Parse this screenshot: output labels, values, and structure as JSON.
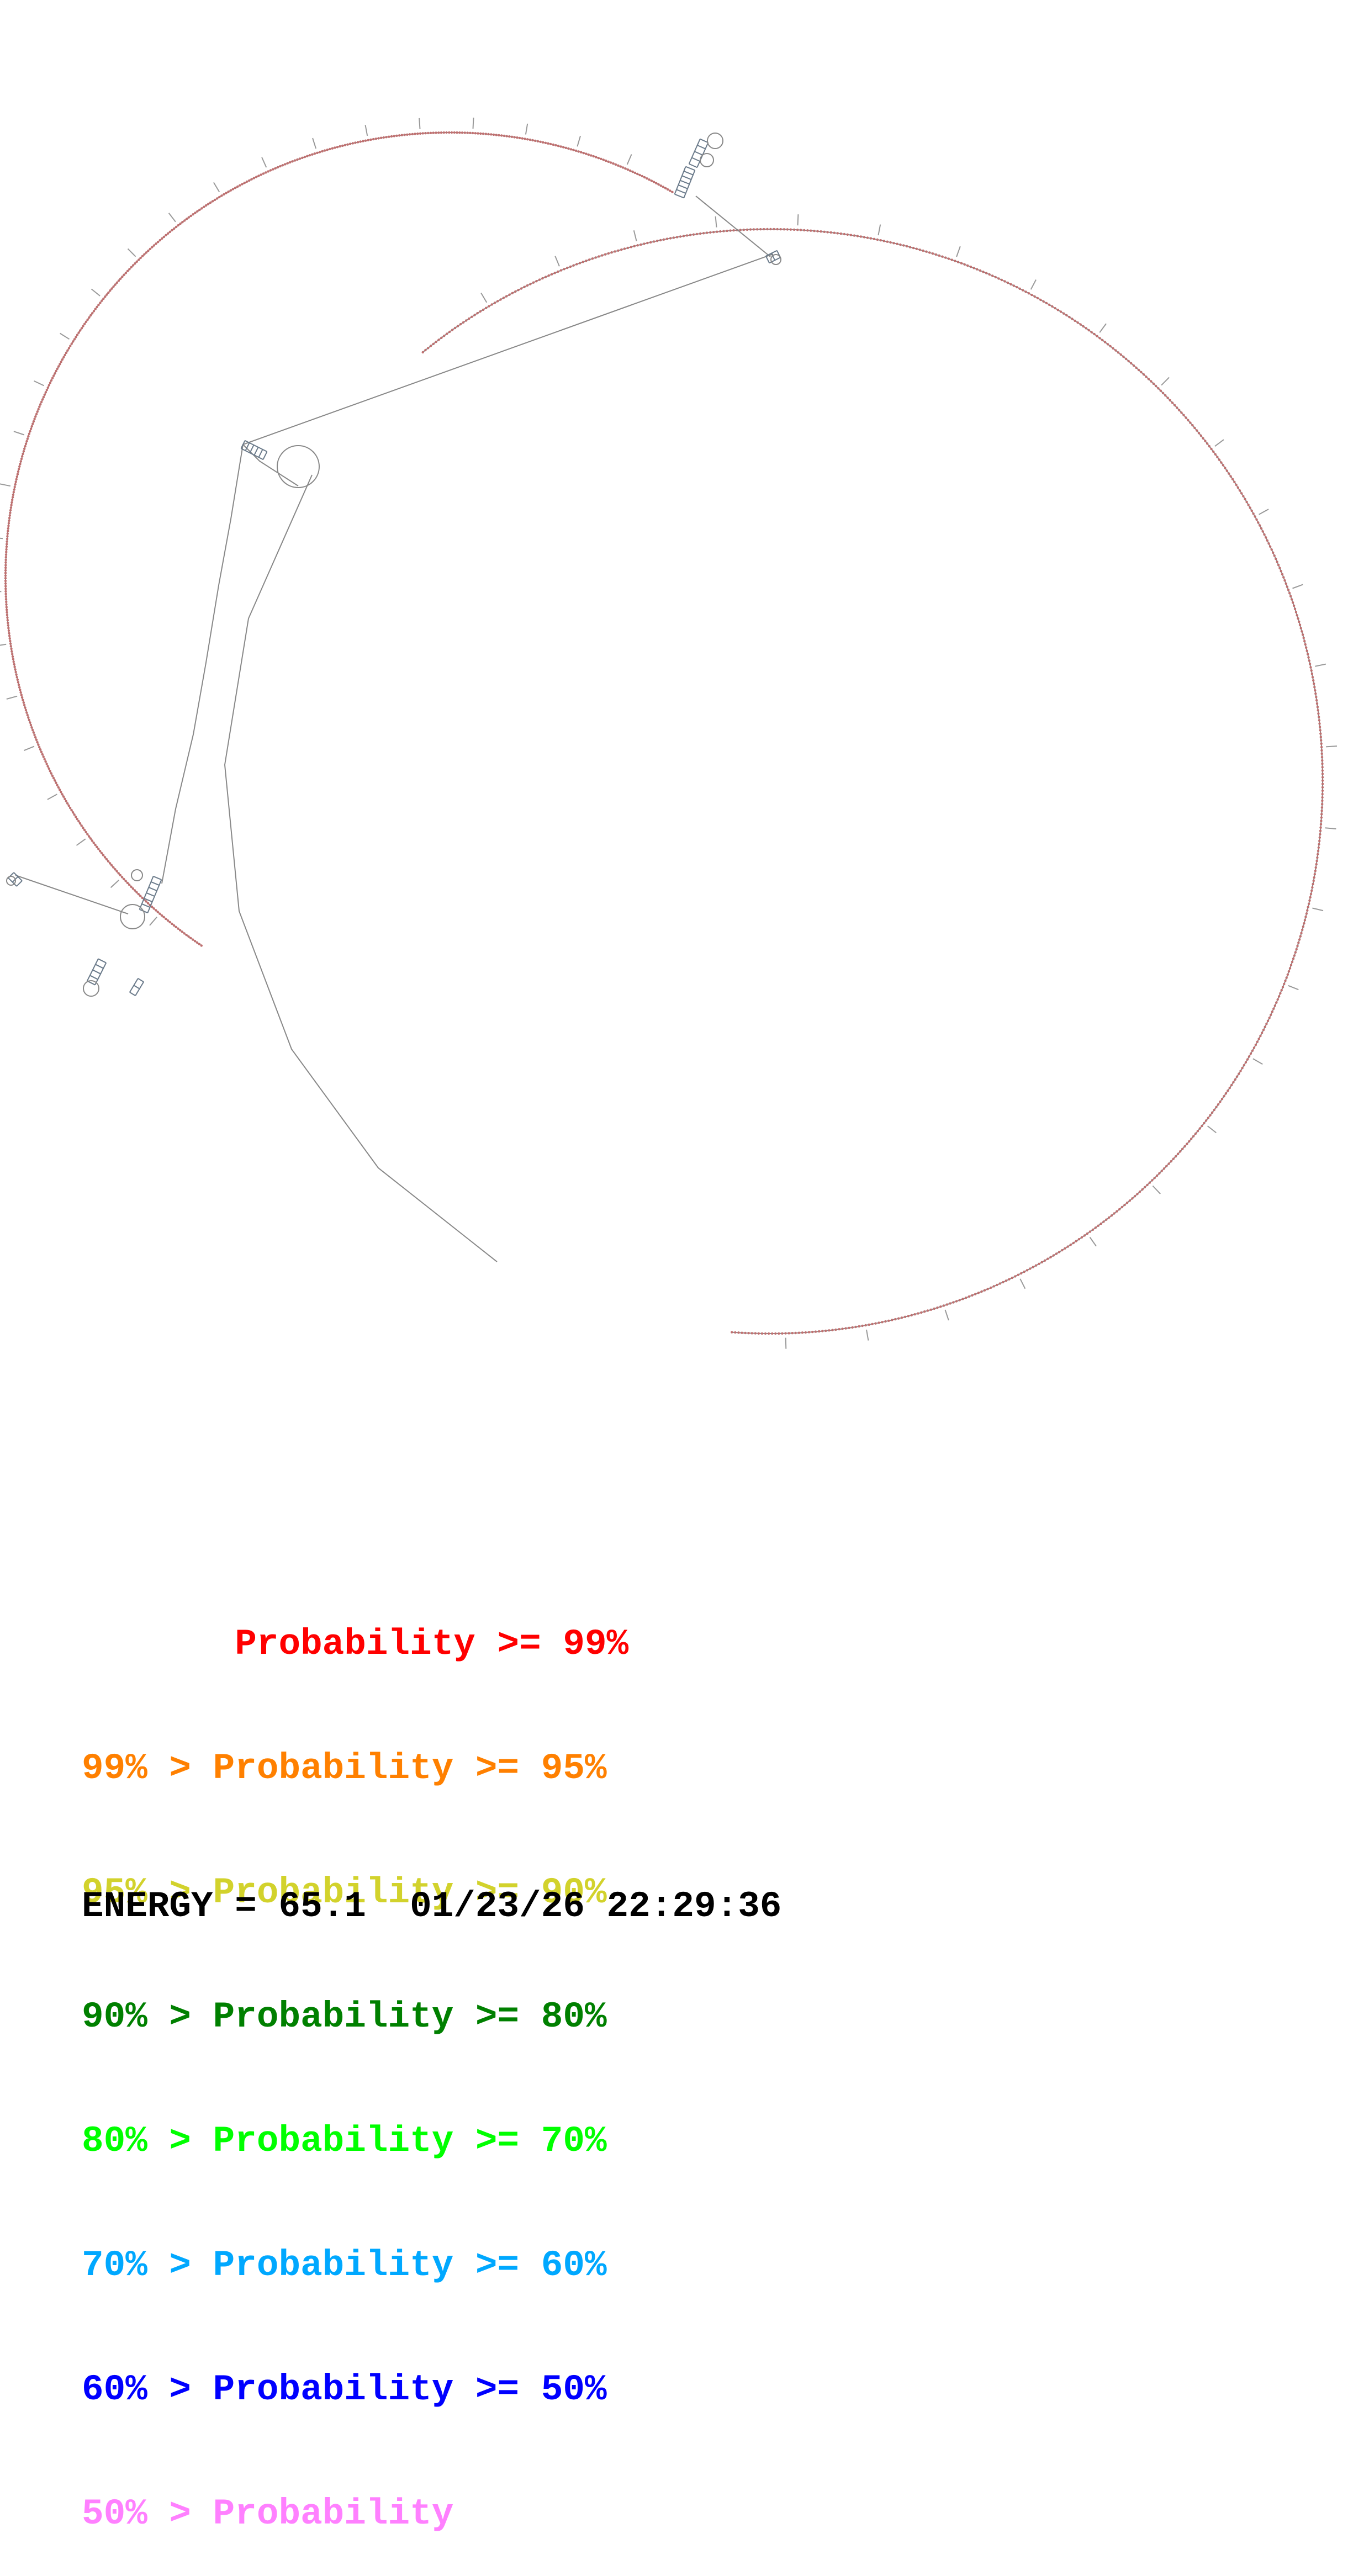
{
  "legend": [
    {
      "text": "       Probability >= 99%",
      "color": "#ff0000"
    },
    {
      "text": "99% > Probability >= 95%",
      "color": "#ff8000"
    },
    {
      "text": "95% > Probability >= 90%",
      "color": "#d2d22c"
    },
    {
      "text": "90% > Probability >= 80%",
      "color": "#008000"
    },
    {
      "text": "80% > Probability >= 70%",
      "color": "#00ff00"
    },
    {
      "text": "70% > Probability >= 60%",
      "color": "#00a8ff"
    },
    {
      "text": "60% > Probability >= 50%",
      "color": "#0000ff"
    },
    {
      "text": "50% > Probability",
      "color": "#ff80ff"
    }
  ],
  "footer": {
    "energy": "ENERGY = 65.1  01/23/26 22:29:36"
  },
  "colors": {
    "backbone": "#888888",
    "nucleotide_dot": "#c07070",
    "helix": "#6a7a8a"
  }
}
